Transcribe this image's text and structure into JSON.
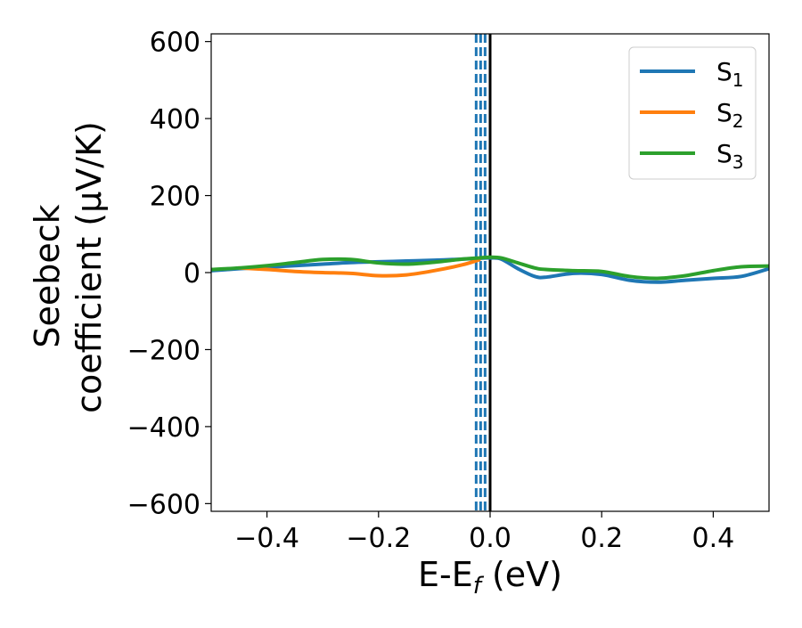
{
  "chart_data": {
    "type": "line",
    "title": "",
    "xlabel": {
      "main": "E-E",
      "sub": "f",
      "suffix": " (eV)"
    },
    "ylabel": {
      "line1": "Seebeck",
      "line2": "coefficient  (μV/K)"
    },
    "xlim": [
      -0.5,
      0.5
    ],
    "ylim": [
      -620,
      620
    ],
    "xticks": [
      -0.4,
      -0.2,
      0.0,
      0.2,
      0.4
    ],
    "xtick_labels": [
      "−0.4",
      "−0.2",
      "0.0",
      "0.2",
      "0.4"
    ],
    "yticks": [
      -600,
      -400,
      -200,
      0,
      200,
      400,
      600
    ],
    "ytick_labels": [
      "−600",
      "−400",
      "−200",
      "0",
      "200",
      "400",
      "600"
    ],
    "grid": false,
    "legend_placement": "top-right",
    "series": [
      {
        "name": "S",
        "sub": "1",
        "color": "#1f77b4",
        "x": [
          -0.5,
          -0.45,
          -0.4,
          -0.35,
          -0.3,
          -0.25,
          -0.2,
          -0.15,
          -0.1,
          -0.05,
          -0.02,
          0.0,
          0.02,
          0.05,
          0.08,
          0.1,
          0.15,
          0.2,
          0.25,
          0.3,
          0.35,
          0.4,
          0.45,
          0.5
        ],
        "y": [
          5,
          10,
          14,
          18,
          22,
          26,
          28,
          30,
          32,
          35,
          37,
          38,
          35,
          10,
          -10,
          -12,
          -2,
          -5,
          -20,
          -25,
          -20,
          -15,
          -10,
          10
        ]
      },
      {
        "name": "S",
        "sub": "2",
        "color": "#ff7f0e",
        "x": [
          -0.45,
          -0.4,
          -0.35,
          -0.3,
          -0.25,
          -0.2,
          -0.15,
          -0.1,
          -0.05,
          -0.02
        ],
        "y": [
          12,
          8,
          3,
          0,
          -2,
          -8,
          -6,
          5,
          20,
          33
        ]
      },
      {
        "name": "S",
        "sub": "3",
        "color": "#2ca02c",
        "x": [
          -0.5,
          -0.45,
          -0.4,
          -0.35,
          -0.3,
          -0.25,
          -0.2,
          -0.15,
          -0.1,
          -0.05,
          -0.02,
          0.0,
          0.02,
          0.05,
          0.08,
          0.1,
          0.15,
          0.2,
          0.25,
          0.3,
          0.35,
          0.4,
          0.45,
          0.5
        ],
        "y": [
          8,
          12,
          18,
          26,
          34,
          34,
          25,
          22,
          27,
          35,
          38,
          40,
          38,
          25,
          12,
          8,
          5,
          3,
          -10,
          -15,
          -8,
          5,
          15,
          17
        ]
      }
    ],
    "vlines": [
      {
        "x": -0.025,
        "style": "dashed",
        "color": "#1f77b4"
      },
      {
        "x": -0.017,
        "style": "dashed",
        "color": "#1f77b4"
      },
      {
        "x": -0.009,
        "style": "dashed",
        "color": "#1f77b4"
      },
      {
        "x": 0.0,
        "style": "solid",
        "color": "#000000"
      }
    ]
  }
}
